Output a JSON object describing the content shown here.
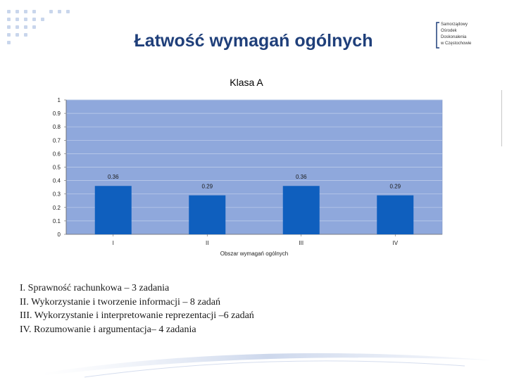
{
  "slide": {
    "title": "Łatwość wymagań ogólnych"
  },
  "logo": {
    "lines": [
      "Samorządowy",
      "Ośrodek",
      "Doskonalenia",
      "w Częstochowie"
    ],
    "icon": "institution-logo",
    "color": "#1f3f7a"
  },
  "colors": {
    "title": "#1f3f7a",
    "plot_background": "#8fa8dc",
    "bar": "#0f5fbe",
    "dot_pattern": "#c9d6ec"
  },
  "chart_data": {
    "type": "bar",
    "title": "Klasa A",
    "xlabel": "Obszar wymagań ogólnych",
    "ylabel": "",
    "categories": [
      "I",
      "II",
      "III",
      "IV"
    ],
    "values": [
      0.36,
      0.29,
      0.36,
      0.29
    ],
    "value_labels": [
      "0.36",
      "0.29",
      "0.36",
      "0.29"
    ],
    "ylim": [
      0,
      1
    ],
    "yticks": [
      "0",
      "0.1",
      "0.2",
      "0.3",
      "0.4",
      "0.5",
      "0.6",
      "0.7",
      "0.8",
      "0.9",
      "1"
    ],
    "grid": true,
    "legend": "none"
  },
  "legend_text": [
    "I.  Sprawność rachunkowa – 3 zadania",
    "II.  Wykorzystanie i tworzenie informacji – 8 zadań",
    "III.  Wykorzystanie i interpretowanie reprezentacji –6 zadań",
    "IV. Rozumowanie i argumentacja– 4 zadania"
  ]
}
